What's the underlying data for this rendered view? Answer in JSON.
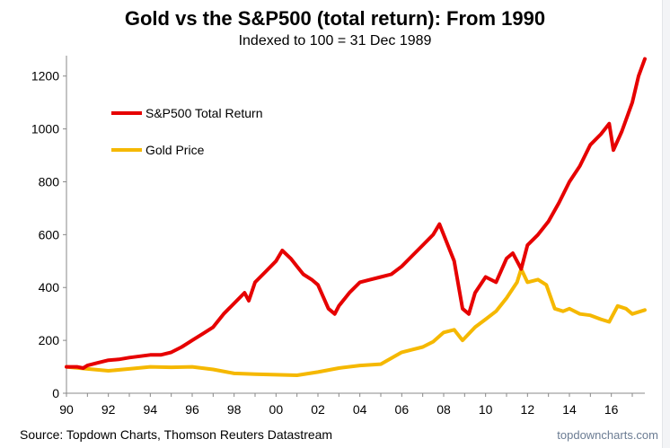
{
  "chart_data": {
    "type": "line",
    "title": "Gold vs the S&P500 (total return): From 1990",
    "subtitle": "Indexed to 100 = 31 Dec 1989",
    "source": "Source: Topdown Charts, Thomson Reuters Datastream",
    "watermark": "topdowncharts.com",
    "xlim": [
      1990,
      2017.6
    ],
    "ylim": [
      0,
      1250
    ],
    "x_ticks": [
      1990,
      1992,
      1994,
      1996,
      1998,
      2000,
      2002,
      2004,
      2006,
      2008,
      2010,
      2012,
      2014,
      2016
    ],
    "x_tick_labels": [
      "90",
      "92",
      "94",
      "96",
      "98",
      "00",
      "02",
      "04",
      "06",
      "08",
      "10",
      "12",
      "14",
      "16"
    ],
    "y_ticks": [
      0,
      200,
      400,
      600,
      800,
      1000,
      1200
    ],
    "y_tick_labels": [
      "0",
      "200",
      "400",
      "600",
      "800",
      "1000",
      "1200"
    ],
    "grid": false,
    "legend_position": "top-left",
    "series": [
      {
        "name": "S&P500 Total Return",
        "color": "#e60000",
        "x": [
          1990.0,
          1990.5,
          1990.8,
          1991.0,
          1991.5,
          1992.0,
          1992.5,
          1993.0,
          1993.5,
          1994.0,
          1994.5,
          1995.0,
          1995.5,
          1996.0,
          1996.5,
          1997.0,
          1997.5,
          1998.0,
          1998.5,
          1998.7,
          1999.0,
          1999.5,
          2000.0,
          2000.3,
          2000.7,
          2001.0,
          2001.3,
          2001.7,
          2002.0,
          2002.5,
          2002.8,
          2003.0,
          2003.5,
          2004.0,
          2004.5,
          2005.0,
          2005.5,
          2006.0,
          2006.5,
          2007.0,
          2007.5,
          2007.8,
          2008.0,
          2008.5,
          2008.9,
          2009.2,
          2009.5,
          2010.0,
          2010.5,
          2011.0,
          2011.3,
          2011.7,
          2012.0,
          2012.5,
          2013.0,
          2013.5,
          2014.0,
          2014.5,
          2015.0,
          2015.5,
          2015.9,
          2016.1,
          2016.5,
          2017.0,
          2017.3,
          2017.6
        ],
        "values": [
          100,
          100,
          95,
          105,
          115,
          125,
          128,
          135,
          140,
          145,
          145,
          155,
          175,
          200,
          225,
          250,
          300,
          340,
          380,
          350,
          420,
          460,
          500,
          540,
          510,
          480,
          450,
          430,
          410,
          320,
          300,
          330,
          380,
          420,
          430,
          440,
          450,
          480,
          520,
          560,
          600,
          640,
          600,
          500,
          320,
          300,
          380,
          440,
          420,
          510,
          530,
          470,
          560,
          600,
          650,
          720,
          800,
          860,
          940,
          980,
          1020,
          920,
          990,
          1100,
          1200,
          1265
        ]
      },
      {
        "name": "Gold Price",
        "color": "#f5b800",
        "x": [
          1990.0,
          1991.0,
          1992.0,
          1993.0,
          1994.0,
          1995.0,
          1996.0,
          1997.0,
          1998.0,
          1999.0,
          2000.0,
          2001.0,
          2002.0,
          2003.0,
          2004.0,
          2005.0,
          2006.0,
          2006.5,
          2007.0,
          2007.5,
          2008.0,
          2008.5,
          2008.9,
          2009.5,
          2010.0,
          2010.5,
          2011.0,
          2011.5,
          2011.7,
          2012.0,
          2012.5,
          2012.9,
          2013.3,
          2013.7,
          2014.0,
          2014.5,
          2015.0,
          2015.5,
          2015.9,
          2016.3,
          2016.7,
          2017.0,
          2017.6
        ],
        "values": [
          100,
          92,
          85,
          92,
          100,
          98,
          100,
          90,
          75,
          72,
          70,
          68,
          80,
          95,
          105,
          110,
          155,
          165,
          175,
          195,
          230,
          240,
          200,
          250,
          280,
          310,
          360,
          420,
          470,
          420,
          430,
          410,
          320,
          310,
          320,
          300,
          295,
          280,
          270,
          330,
          320,
          300,
          315
        ]
      }
    ]
  }
}
